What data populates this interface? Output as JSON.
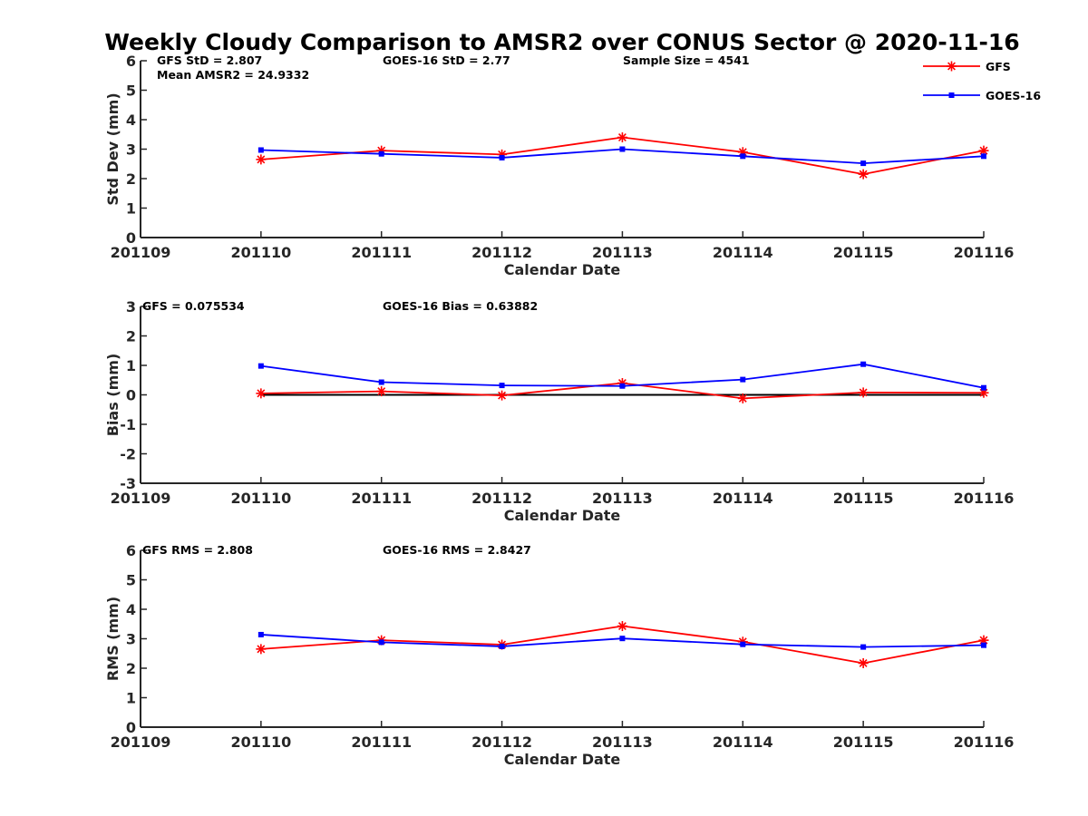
{
  "title": "Weekly Cloudy Comparison to AMSR2 over CONUS Sector @ 2020-11-16",
  "legend": [
    {
      "label": "GFS",
      "color": "#ff0000",
      "marker": "asterisk"
    },
    {
      "label": "GOES-16",
      "color": "#0000ff",
      "marker": "square"
    }
  ],
  "chart_data": [
    {
      "type": "line",
      "ylabel": "Std Dev (mm)",
      "xlabel": "Calendar Date",
      "x_ticks": [
        "201109",
        "201110",
        "201111",
        "201112",
        "201113",
        "201114",
        "201115",
        "201116"
      ],
      "ylim": [
        0,
        6
      ],
      "y_ticks": [
        "0",
        "1",
        "2",
        "3",
        "4",
        "5",
        "6"
      ],
      "x": [
        "201110",
        "201111",
        "201112",
        "201113",
        "201114",
        "201115",
        "201116"
      ],
      "series": [
        {
          "name": "GFS",
          "values": [
            2.65,
            2.95,
            2.82,
            3.4,
            2.9,
            2.15,
            2.95
          ]
        },
        {
          "name": "GOES-16",
          "values": [
            2.97,
            2.84,
            2.71,
            3.0,
            2.76,
            2.52,
            2.76
          ]
        }
      ],
      "annotations": [
        "GFS StD = 2.807",
        "Mean AMSR2 = 24.9332",
        "GOES-16 StD = 2.77",
        "Sample Size = 4541"
      ],
      "legend_position": "top-right",
      "zero_line": false
    },
    {
      "type": "line",
      "ylabel": "Bias (mm)",
      "xlabel": "Calendar Date",
      "x_ticks": [
        "201109",
        "201110",
        "201111",
        "201112",
        "201113",
        "201114",
        "201115",
        "201116"
      ],
      "ylim": [
        -3,
        3
      ],
      "y_ticks": [
        "-3",
        "-2",
        "-1",
        "0",
        "1",
        "2",
        "3"
      ],
      "x": [
        "201110",
        "201111",
        "201112",
        "201113",
        "201114",
        "201115",
        "201116"
      ],
      "series": [
        {
          "name": "GFS",
          "values": [
            0.05,
            0.12,
            -0.02,
            0.4,
            -0.12,
            0.08,
            0.07
          ]
        },
        {
          "name": "GOES-16",
          "values": [
            0.98,
            0.43,
            0.32,
            0.3,
            0.52,
            1.04,
            0.24
          ]
        }
      ],
      "annotations": [
        "GFS = 0.075534",
        "GOES-16 Bias  = 0.63882"
      ],
      "zero_line": true
    },
    {
      "type": "line",
      "ylabel": "RMS (mm)",
      "xlabel": "Calendar Date",
      "x_ticks": [
        "201109",
        "201110",
        "201111",
        "201112",
        "201113",
        "201114",
        "201115",
        "201116"
      ],
      "ylim": [
        0,
        6
      ],
      "y_ticks": [
        "0",
        "1",
        "2",
        "3",
        "4",
        "5",
        "6"
      ],
      "x": [
        "201110",
        "201111",
        "201112",
        "201113",
        "201114",
        "201115",
        "201116"
      ],
      "series": [
        {
          "name": "GFS",
          "values": [
            2.65,
            2.95,
            2.8,
            3.43,
            2.9,
            2.17,
            2.95
          ]
        },
        {
          "name": "GOES-16",
          "values": [
            3.14,
            2.88,
            2.74,
            3.01,
            2.81,
            2.72,
            2.78
          ]
        }
      ],
      "annotations": [
        "GFS RMS = 2.808",
        "GOES-16 RMS = 2.8427"
      ],
      "zero_line": false
    }
  ]
}
